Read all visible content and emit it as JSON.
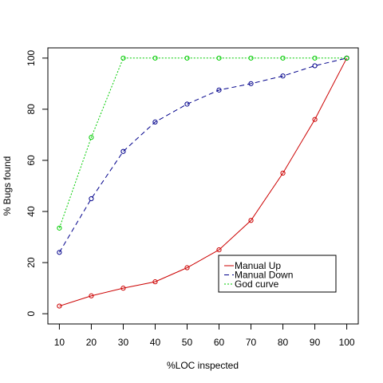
{
  "chart_data": {
    "type": "line",
    "title": "",
    "xlabel": "%LOC inspected",
    "ylabel": "% Bugs found",
    "xlim": [
      6.4,
      103.6
    ],
    "ylim": [
      -4,
      104
    ],
    "x_ticks": [
      10,
      20,
      30,
      40,
      50,
      60,
      70,
      80,
      90,
      100
    ],
    "y_ticks": [
      0,
      20,
      40,
      60,
      80,
      100
    ],
    "grid": false,
    "legend": "bottom-right",
    "series": [
      {
        "name": "Manual Up",
        "color": "#cc0000",
        "line_style": "solid",
        "marker": "open-circle",
        "x": [
          10,
          20,
          30,
          40,
          50,
          60,
          70,
          80,
          90,
          100
        ],
        "y": [
          3,
          7,
          10,
          12.5,
          18,
          25,
          36.5,
          55,
          76,
          100
        ]
      },
      {
        "name": "Manual Down",
        "color": "#00008b",
        "line_style": "dashed",
        "marker": "open-circle",
        "x": [
          10,
          20,
          30,
          40,
          50,
          60,
          70,
          80,
          90,
          100
        ],
        "y": [
          24,
          45,
          63.5,
          75,
          82,
          87.5,
          90,
          93,
          97,
          100
        ]
      },
      {
        "name": "God curve",
        "color": "#00cc00",
        "line_style": "dotted",
        "marker": "open-circle",
        "x": [
          10,
          20,
          30,
          40,
          50,
          60,
          70,
          80,
          90,
          100
        ],
        "y": [
          33.5,
          69,
          100,
          100,
          100,
          100,
          100,
          100,
          100,
          100
        ]
      }
    ]
  }
}
